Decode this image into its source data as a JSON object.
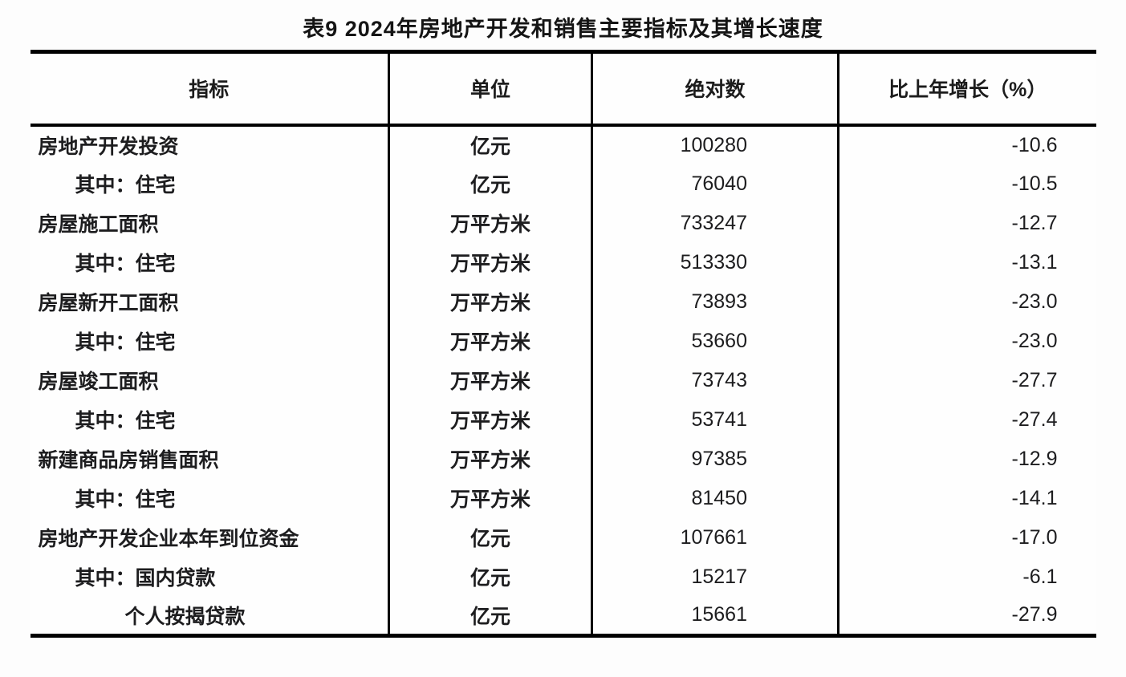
{
  "title": "表9 2024年房地产开发和销售主要指标及其增长速度",
  "table": {
    "columns": [
      "指标",
      "单位",
      "绝对数",
      "比上年增长（%）"
    ],
    "rows": [
      {
        "indicator": "房地产开发投资",
        "indent": 0,
        "unit": "亿元",
        "value": "100280",
        "growth": "-10.6"
      },
      {
        "indicator": "其中：住宅",
        "indent": 1,
        "unit": "亿元",
        "value": "76040",
        "growth": "-10.5"
      },
      {
        "indicator": "房屋施工面积",
        "indent": 0,
        "unit": "万平方米",
        "value": "733247",
        "growth": "-12.7"
      },
      {
        "indicator": "其中：住宅",
        "indent": 1,
        "unit": "万平方米",
        "value": "513330",
        "growth": "-13.1"
      },
      {
        "indicator": "房屋新开工面积",
        "indent": 0,
        "unit": "万平方米",
        "value": "73893",
        "growth": "-23.0"
      },
      {
        "indicator": "其中：住宅",
        "indent": 1,
        "unit": "万平方米",
        "value": "53660",
        "growth": "-23.0"
      },
      {
        "indicator": "房屋竣工面积",
        "indent": 0,
        "unit": "万平方米",
        "value": "73743",
        "growth": "-27.7"
      },
      {
        "indicator": "其中：住宅",
        "indent": 1,
        "unit": "万平方米",
        "value": "53741",
        "growth": "-27.4"
      },
      {
        "indicator": "新建商品房销售面积",
        "indent": 0,
        "unit": "万平方米",
        "value": "97385",
        "growth": "-12.9"
      },
      {
        "indicator": "其中：住宅",
        "indent": 1,
        "unit": "万平方米",
        "value": "81450",
        "growth": "-14.1"
      },
      {
        "indicator": "房地产开发企业本年到位资金",
        "indent": 0,
        "unit": "亿元",
        "value": "107661",
        "growth": "-17.0"
      },
      {
        "indicator": "其中：国内贷款",
        "indent": 1,
        "unit": "亿元",
        "value": "15217",
        "growth": "-6.1"
      },
      {
        "indicator": "个人按揭贷款",
        "indent": 2,
        "unit": "亿元",
        "value": "15661",
        "growth": "-27.9"
      }
    ]
  }
}
